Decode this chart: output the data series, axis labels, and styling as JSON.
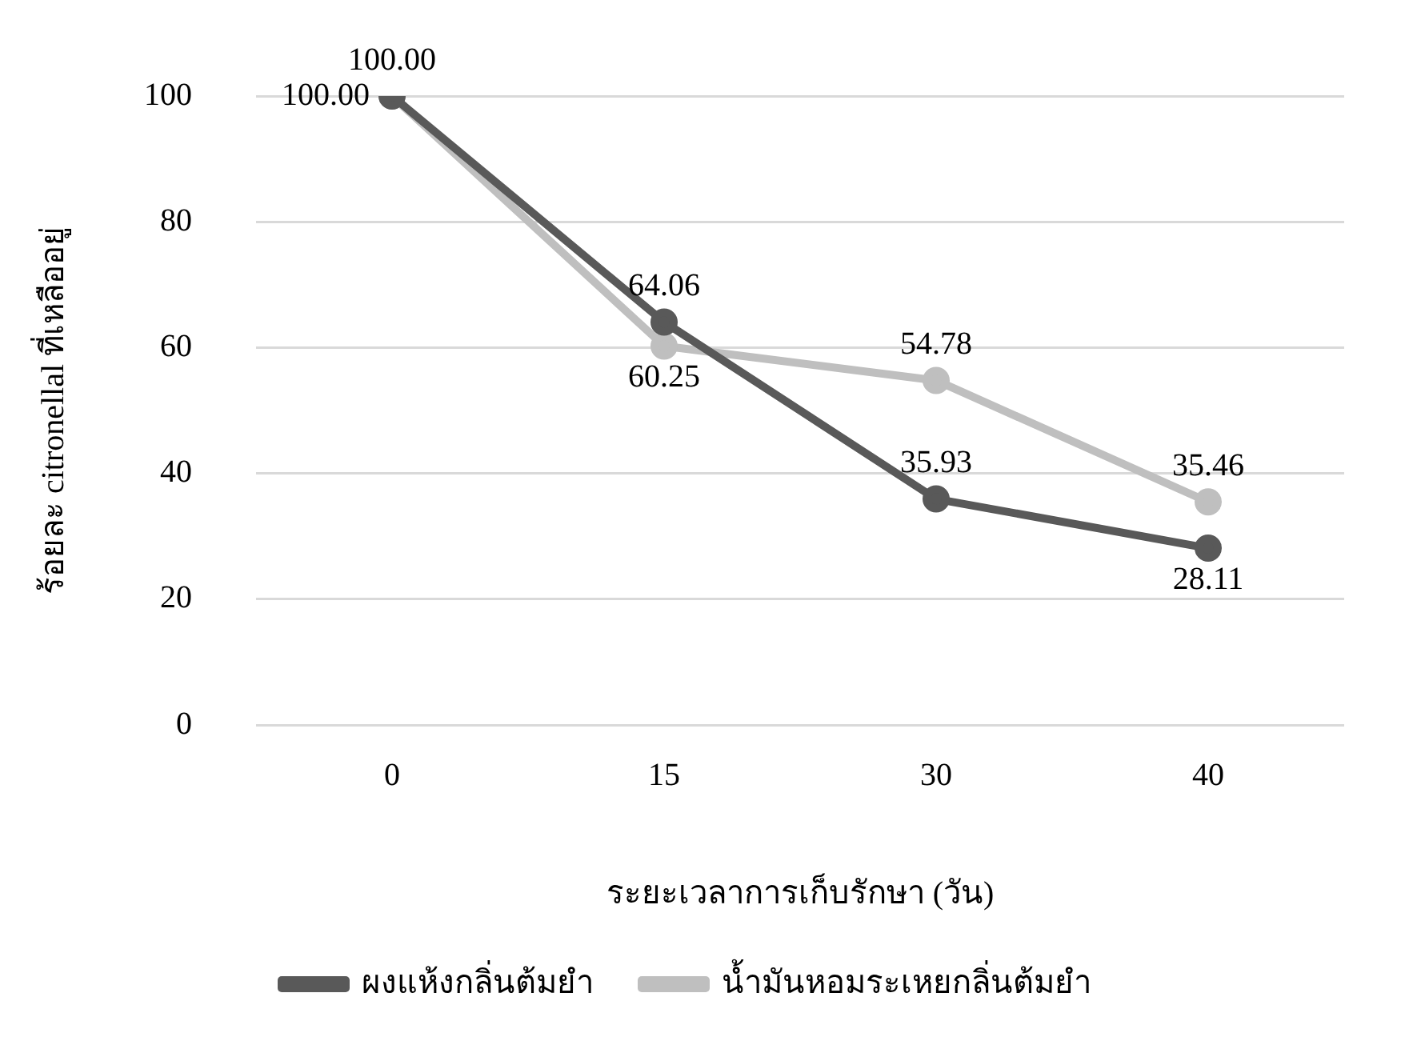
{
  "chart_data": {
    "type": "line",
    "xlabel": "ระยะเวลาการเก็บรักษา (วัน)",
    "ylabel": "ร้อยละ citronellal ที่เหลืออยู่",
    "categories": [
      "0",
      "15",
      "30",
      "40"
    ],
    "series": [
      {
        "name": "ผงแห้งกลิ่นต้มยำ",
        "color": "#595959",
        "values": [
          100,
          64.06,
          35.93,
          28.11
        ],
        "value_labels": [
          "100.00",
          "64.06",
          "35.93",
          "28.11"
        ]
      },
      {
        "name": "น้ำมันหอมระเหยกลิ่นต้มยำ",
        "color": "#bfbfbf",
        "values": [
          100,
          60.25,
          54.78,
          35.46
        ],
        "value_labels": [
          "100.00",
          "60.25",
          "54.78",
          "35.46"
        ]
      }
    ],
    "ylim": [
      0,
      100
    ],
    "yticks": [
      0,
      20,
      40,
      60,
      80,
      100
    ],
    "grid": "y",
    "legend": "bottom",
    "marker": "circle",
    "line_style": "solid"
  }
}
